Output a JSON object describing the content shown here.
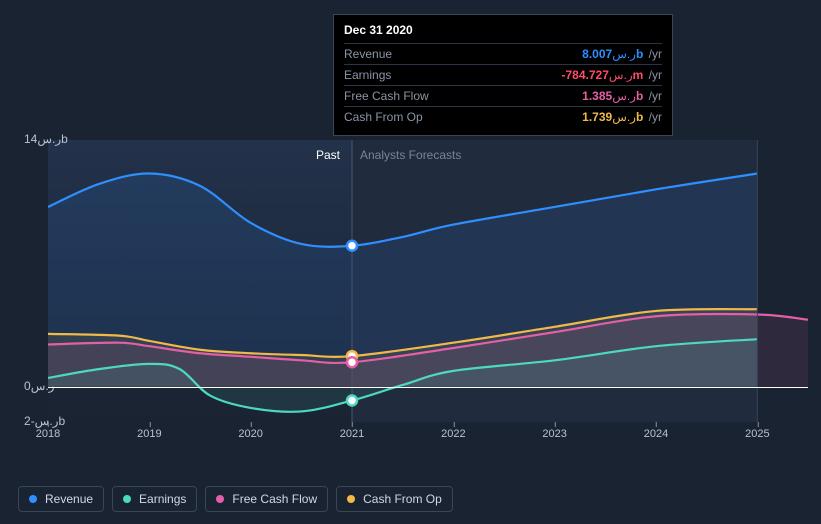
{
  "background_color": "#1a2332",
  "tooltip": {
    "date": "Dec 31 2020",
    "rows": [
      {
        "label": "Revenue",
        "value": "8.007",
        "currency": "ر.س",
        "scale": "b",
        "suffix": "/yr",
        "color": "#2f8fff"
      },
      {
        "label": "Earnings",
        "value": "-784.727",
        "currency": "ر.س",
        "scale": "m",
        "suffix": "/yr",
        "color": "#ff4d6a"
      },
      {
        "label": "Free Cash Flow",
        "value": "1.385",
        "currency": "ر.س",
        "scale": "b",
        "suffix": "/yr",
        "color": "#e55fa6"
      },
      {
        "label": "Cash From Op",
        "value": "1.739",
        "currency": "ر.س",
        "scale": "b",
        "suffix": "/yr",
        "color": "#f0b94a"
      }
    ]
  },
  "chart": {
    "type": "area-line",
    "x_years": [
      2018,
      2019,
      2020,
      2021,
      2022,
      2023,
      2024,
      2025
    ],
    "divider_year": 2021,
    "past_label": "Past",
    "forecast_label": "Analysts Forecasts",
    "y_ticks": [
      {
        "v": 14,
        "label": "ر.س14b"
      },
      {
        "v": 0,
        "label": "ر.س0"
      },
      {
        "v": -2,
        "label": "ر.س-2b"
      }
    ],
    "ylim": [
      -2,
      14
    ],
    "series": {
      "revenue": {
        "color": "#2f8fff",
        "fill": "rgba(47,143,255,0.12)",
        "points": [
          [
            2018,
            10.2
          ],
          [
            2018.5,
            11.5
          ],
          [
            2019,
            12.1
          ],
          [
            2019.5,
            11.4
          ],
          [
            2020,
            9.3
          ],
          [
            2020.5,
            8.1
          ],
          [
            2021,
            8.0
          ],
          [
            2021.5,
            8.5
          ],
          [
            2022,
            9.2
          ],
          [
            2023,
            10.2
          ],
          [
            2024,
            11.2
          ],
          [
            2025,
            12.1
          ]
        ]
      },
      "earnings": {
        "color": "#4dd9c0",
        "fill": "rgba(77,217,192,0.10)",
        "points": [
          [
            2018,
            0.5
          ],
          [
            2018.5,
            1.0
          ],
          [
            2019,
            1.3
          ],
          [
            2019.3,
            1.0
          ],
          [
            2019.6,
            -0.5
          ],
          [
            2020,
            -1.2
          ],
          [
            2020.5,
            -1.4
          ],
          [
            2021,
            -0.78
          ],
          [
            2021.5,
            0.1
          ],
          [
            2022,
            0.9
          ],
          [
            2023,
            1.5
          ],
          [
            2024,
            2.3
          ],
          [
            2025,
            2.7
          ]
        ]
      },
      "fcf": {
        "color": "#e55fa6",
        "fill": "rgba(229,95,166,0.10)",
        "points": [
          [
            2018,
            2.4
          ],
          [
            2018.7,
            2.5
          ],
          [
            2019,
            2.3
          ],
          [
            2019.5,
            1.9
          ],
          [
            2020,
            1.7
          ],
          [
            2020.5,
            1.5
          ],
          [
            2021,
            1.39
          ],
          [
            2022,
            2.2
          ],
          [
            2023,
            3.1
          ],
          [
            2024,
            4.0
          ],
          [
            2025,
            4.1
          ],
          [
            2025.5,
            3.8
          ]
        ]
      },
      "cfo": {
        "color": "#f0b94a",
        "fill": "rgba(240,185,74,0.10)",
        "points": [
          [
            2018,
            3.0
          ],
          [
            2018.7,
            2.9
          ],
          [
            2019,
            2.6
          ],
          [
            2019.5,
            2.1
          ],
          [
            2020,
            1.9
          ],
          [
            2020.5,
            1.8
          ],
          [
            2021,
            1.74
          ],
          [
            2022,
            2.5
          ],
          [
            2023,
            3.4
          ],
          [
            2024,
            4.3
          ],
          [
            2025,
            4.4
          ]
        ]
      }
    },
    "cursor_markers": [
      {
        "series": "revenue",
        "year": 2021
      },
      {
        "series": "cfo",
        "year": 2021
      },
      {
        "series": "fcf",
        "year": 2021
      },
      {
        "series": "earnings",
        "year": 2021
      }
    ]
  },
  "legend": [
    {
      "key": "revenue",
      "label": "Revenue",
      "color": "#2f8fff"
    },
    {
      "key": "earnings",
      "label": "Earnings",
      "color": "#4dd9c0"
    },
    {
      "key": "fcf",
      "label": "Free Cash Flow",
      "color": "#e55fa6"
    },
    {
      "key": "cfo",
      "label": "Cash From Op",
      "color": "#f0b94a"
    }
  ]
}
